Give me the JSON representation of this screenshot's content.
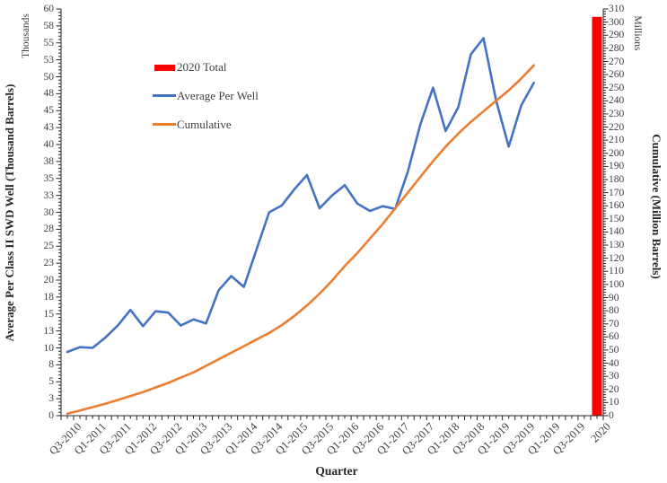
{
  "chart_data": {
    "type": "combo-line-bar",
    "title": "",
    "x_axis": {
      "label": "Quarter",
      "n_categories": 43,
      "label_every": 2,
      "tick_labels": [
        "Q3-2010",
        "Q1-2011",
        "Q3-2011",
        "Q1-2012",
        "Q3-2012",
        "Q1-2013",
        "Q3-2013",
        "Q1-2014",
        "Q3-2014",
        "Q1-2015",
        "Q3-2015",
        "Q1-2016",
        "Q3-2016",
        "Q1-2017",
        "Q3-2017",
        "Q1-2018",
        "Q3-2018",
        "Q1-2019",
        "Q3-2019",
        "Q1-2019",
        "Q3-2019",
        "2020"
      ]
    },
    "left_axis": {
      "label": "Average Per Class II SWD Well (Thousand Barrels)",
      "units_label": "Thousands",
      "min": 0,
      "max": 60,
      "major_step": 2.5,
      "minor_step": 0.5,
      "tick_labels": [
        "0",
        "3",
        "5",
        "8",
        "10",
        "13",
        "15",
        "18",
        "20",
        "23",
        "25",
        "28",
        "30",
        "33",
        "35",
        "38",
        "40",
        "43",
        "45",
        "48",
        "50",
        "53",
        "55",
        "58",
        "60"
      ]
    },
    "right_axis": {
      "label": "Cumulative (Million Barrels)",
      "units_label": "Millions",
      "min": 0,
      "max": 310,
      "major_step": 10,
      "minor_step": 2,
      "tick_labels": [
        "0",
        "10",
        "20",
        "30",
        "40",
        "50",
        "60",
        "70",
        "80",
        "90",
        "100",
        "110",
        "120",
        "130",
        "140",
        "150",
        "160",
        "170",
        "180",
        "190",
        "200",
        "210",
        "220",
        "230",
        "240",
        "250",
        "260",
        "270",
        "280",
        "290",
        "300",
        "310"
      ]
    },
    "legend": {
      "position": "inside-top-left"
    },
    "series": [
      {
        "name": "2020 Total",
        "type": "bar",
        "axis": "right",
        "color": "#FF0000",
        "category": "2020",
        "value": 304
      },
      {
        "name": "Average Per Well",
        "type": "line",
        "axis": "left",
        "color": "#4472C4",
        "start_category": "Q3-2010",
        "values": [
          9.4,
          10.1,
          10.0,
          11.5,
          13.3,
          15.6,
          13.2,
          15.4,
          15.2,
          13.3,
          14.2,
          13.6,
          18.5,
          20.6,
          19.0,
          24.5,
          30.0,
          31.0,
          33.4,
          35.5,
          30.6,
          32.5,
          34.0,
          31.3,
          30.2,
          30.9,
          30.5,
          36.0,
          43.0,
          48.4,
          42.0,
          45.5,
          53.3,
          55.7,
          46.5,
          39.7,
          45.8,
          49.1
        ]
      },
      {
        "name": "Cumulative",
        "type": "line",
        "axis": "right",
        "color": "#ED7D31",
        "start_category": "Q3-2010",
        "values": [
          1.5,
          4,
          6.5,
          9,
          12,
          15,
          18,
          21.5,
          25,
          29,
          33,
          38,
          43,
          48,
          53,
          58,
          63,
          69,
          76,
          84,
          93,
          103,
          114,
          124,
          135,
          146,
          158,
          170,
          182,
          194,
          205,
          215,
          224,
          232,
          240,
          248,
          257,
          267
        ]
      }
    ],
    "styles": {
      "text_color": "#404040",
      "axis_color": "#262626",
      "background": "#FFFFFF"
    }
  }
}
